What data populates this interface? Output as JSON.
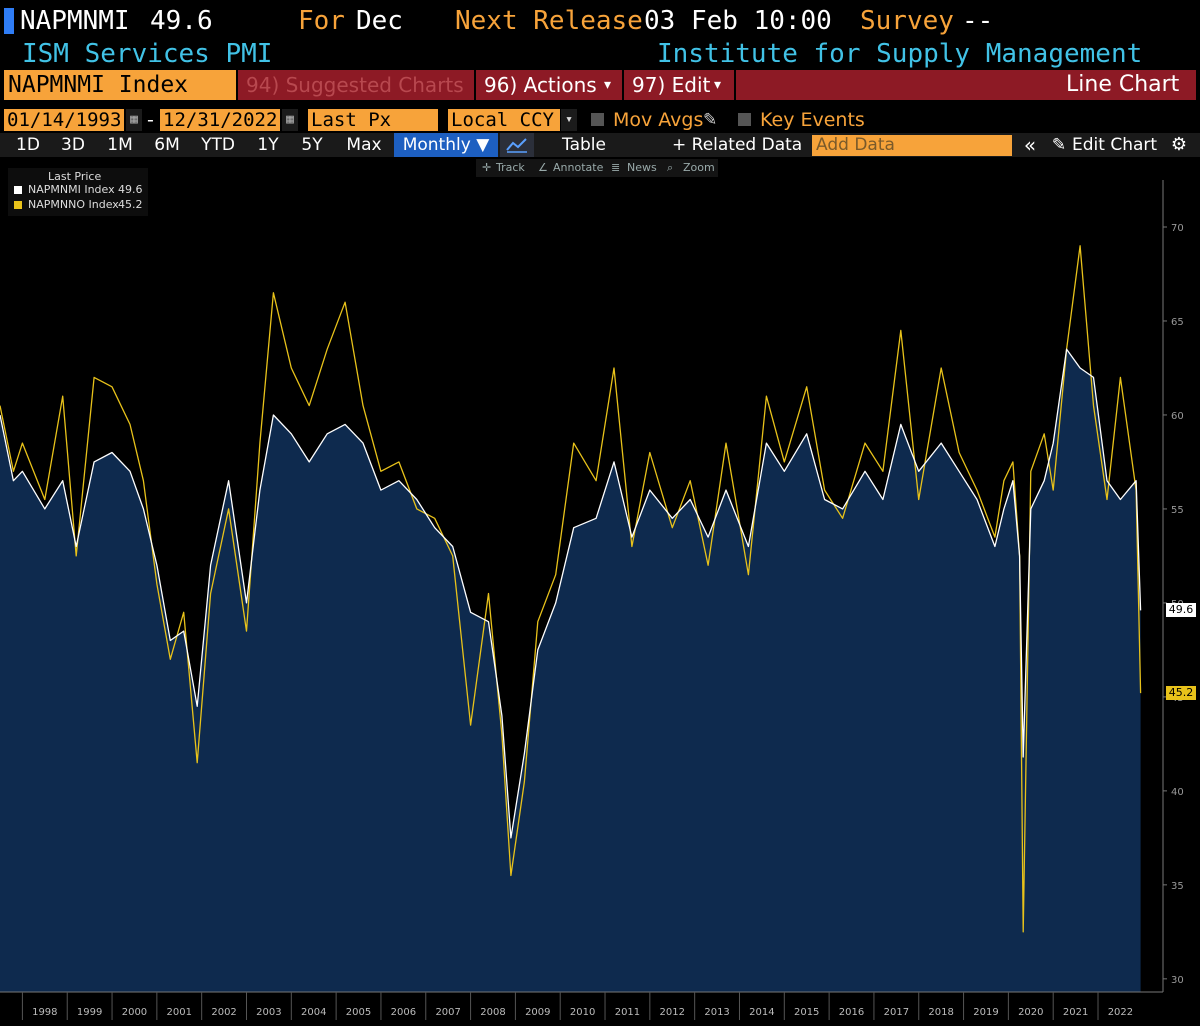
{
  "header": {
    "ticker": "NAPMNMI",
    "last": "49.6",
    "for_label": "For",
    "period": "Dec",
    "next_release_label": "Next Release",
    "next_release": "03 Feb 10:00",
    "survey_label": "Survey",
    "survey_value": "--",
    "name": "ISM Services PMI",
    "source": "Institute for Supply Management"
  },
  "function_bar": {
    "security": "NAPMNMI Index",
    "suggested": "94) Suggested Charts",
    "actions": "96) Actions",
    "edit": "97) Edit",
    "chart_type": "Line Chart",
    "dropdown_arrow": "▾"
  },
  "controls": {
    "start_date": "01/14/1993",
    "dash": "-",
    "end_date": "12/31/2022",
    "price_field": "Last Px",
    "currency": "Local CCY",
    "mov_avgs": "Mov Avgs",
    "key_events": "Key Events"
  },
  "toolbar": {
    "periods": [
      "1D",
      "3D",
      "1M",
      "6M",
      "YTD",
      "1Y",
      "5Y",
      "Max"
    ],
    "frequency": "Monthly ▼",
    "table": "Table",
    "related": "+ Related Data",
    "add_data_placeholder": "Add Data",
    "collapse": "«",
    "edit_chart": "Edit Chart",
    "sub": [
      "Track",
      "Annotate",
      "News",
      "Zoom"
    ]
  },
  "colors": {
    "napmnmi": "#ffffff",
    "napmnno": "#e8c21a",
    "area": "#0e2a4e",
    "accent": "#f7a33a"
  },
  "chart_data": {
    "type": "line",
    "legend_title": "Last Price",
    "legend_placement": "top-left",
    "series": [
      {
        "name": "NAPMNMI Index",
        "last": "49.6",
        "style": "area",
        "points": [
          [
            1997.5,
            60.0
          ],
          [
            1997.8,
            56.5
          ],
          [
            1998.0,
            57.0
          ],
          [
            1998.5,
            55.0
          ],
          [
            1998.9,
            56.5
          ],
          [
            1999.2,
            53.0
          ],
          [
            1999.6,
            57.5
          ],
          [
            2000.0,
            58.0
          ],
          [
            2000.4,
            57.0
          ],
          [
            2000.7,
            55.0
          ],
          [
            2001.0,
            52.0
          ],
          [
            2001.3,
            48.0
          ],
          [
            2001.6,
            48.5
          ],
          [
            2001.9,
            44.5
          ],
          [
            2002.2,
            52.0
          ],
          [
            2002.6,
            56.5
          ],
          [
            2003.0,
            50.0
          ],
          [
            2003.3,
            56.0
          ],
          [
            2003.6,
            60.0
          ],
          [
            2004.0,
            59.0
          ],
          [
            2004.4,
            57.5
          ],
          [
            2004.8,
            59.0
          ],
          [
            2005.2,
            59.5
          ],
          [
            2005.6,
            58.5
          ],
          [
            2006.0,
            56.0
          ],
          [
            2006.4,
            56.5
          ],
          [
            2006.8,
            55.5
          ],
          [
            2007.2,
            54.0
          ],
          [
            2007.6,
            53.0
          ],
          [
            2008.0,
            49.5
          ],
          [
            2008.4,
            49.0
          ],
          [
            2008.7,
            44.0
          ],
          [
            2008.9,
            37.5
          ],
          [
            2009.2,
            42.0
          ],
          [
            2009.5,
            47.5
          ],
          [
            2009.9,
            50.0
          ],
          [
            2010.3,
            54.0
          ],
          [
            2010.8,
            54.5
          ],
          [
            2011.2,
            57.5
          ],
          [
            2011.6,
            53.5
          ],
          [
            2012.0,
            56.0
          ],
          [
            2012.5,
            54.5
          ],
          [
            2012.9,
            55.5
          ],
          [
            2013.3,
            53.5
          ],
          [
            2013.7,
            56.0
          ],
          [
            2014.2,
            53.0
          ],
          [
            2014.6,
            58.5
          ],
          [
            2015.0,
            57.0
          ],
          [
            2015.5,
            59.0
          ],
          [
            2015.9,
            55.5
          ],
          [
            2016.3,
            55.0
          ],
          [
            2016.8,
            57.0
          ],
          [
            2017.2,
            55.5
          ],
          [
            2017.6,
            59.5
          ],
          [
            2018.0,
            57.0
          ],
          [
            2018.5,
            58.5
          ],
          [
            2018.9,
            57.0
          ],
          [
            2019.3,
            55.5
          ],
          [
            2019.7,
            53.0
          ],
          [
            2019.9,
            55.0
          ],
          [
            2020.1,
            56.5
          ],
          [
            2020.25,
            52.5
          ],
          [
            2020.33,
            41.8
          ],
          [
            2020.5,
            55.0
          ],
          [
            2020.8,
            56.5
          ],
          [
            2021.0,
            58.5
          ],
          [
            2021.3,
            63.5
          ],
          [
            2021.6,
            62.5
          ],
          [
            2021.9,
            62.0
          ],
          [
            2022.2,
            56.5
          ],
          [
            2022.5,
            55.5
          ],
          [
            2022.85,
            56.5
          ],
          [
            2022.95,
            49.6
          ]
        ]
      },
      {
        "name": "NAPMNNO Index",
        "last": "45.2",
        "style": "line",
        "points": [
          [
            1997.5,
            60.5
          ],
          [
            1997.8,
            57.0
          ],
          [
            1998.0,
            58.5
          ],
          [
            1998.5,
            55.5
          ],
          [
            1998.9,
            61.0
          ],
          [
            1999.2,
            52.5
          ],
          [
            1999.6,
            62.0
          ],
          [
            2000.0,
            61.5
          ],
          [
            2000.4,
            59.5
          ],
          [
            2000.7,
            56.5
          ],
          [
            2001.0,
            51.0
          ],
          [
            2001.3,
            47.0
          ],
          [
            2001.6,
            49.5
          ],
          [
            2001.9,
            41.5
          ],
          [
            2002.2,
            50.5
          ],
          [
            2002.6,
            55.0
          ],
          [
            2003.0,
            48.5
          ],
          [
            2003.3,
            58.5
          ],
          [
            2003.6,
            66.5
          ],
          [
            2004.0,
            62.5
          ],
          [
            2004.4,
            60.5
          ],
          [
            2004.8,
            63.5
          ],
          [
            2005.2,
            66.0
          ],
          [
            2005.6,
            60.5
          ],
          [
            2006.0,
            57.0
          ],
          [
            2006.4,
            57.5
          ],
          [
            2006.8,
            55.0
          ],
          [
            2007.2,
            54.5
          ],
          [
            2007.6,
            52.5
          ],
          [
            2008.0,
            43.5
          ],
          [
            2008.4,
            50.5
          ],
          [
            2008.7,
            43.0
          ],
          [
            2008.9,
            35.5
          ],
          [
            2009.2,
            40.5
          ],
          [
            2009.5,
            49.0
          ],
          [
            2009.9,
            51.5
          ],
          [
            2010.3,
            58.5
          ],
          [
            2010.8,
            56.5
          ],
          [
            2011.2,
            62.5
          ],
          [
            2011.6,
            53.0
          ],
          [
            2012.0,
            58.0
          ],
          [
            2012.5,
            54.0
          ],
          [
            2012.9,
            56.5
          ],
          [
            2013.3,
            52.0
          ],
          [
            2013.7,
            58.5
          ],
          [
            2014.2,
            51.5
          ],
          [
            2014.6,
            61.0
          ],
          [
            2015.0,
            57.5
          ],
          [
            2015.5,
            61.5
          ],
          [
            2015.9,
            56.0
          ],
          [
            2016.3,
            54.5
          ],
          [
            2016.8,
            58.5
          ],
          [
            2017.2,
            57.0
          ],
          [
            2017.6,
            64.5
          ],
          [
            2018.0,
            55.5
          ],
          [
            2018.5,
            62.5
          ],
          [
            2018.9,
            58.0
          ],
          [
            2019.3,
            56.0
          ],
          [
            2019.7,
            53.5
          ],
          [
            2019.9,
            56.5
          ],
          [
            2020.1,
            57.5
          ],
          [
            2020.25,
            52.5
          ],
          [
            2020.33,
            32.5
          ],
          [
            2020.5,
            57.0
          ],
          [
            2020.8,
            59.0
          ],
          [
            2021.0,
            56.0
          ],
          [
            2021.3,
            63.5
          ],
          [
            2021.6,
            69.0
          ],
          [
            2021.9,
            60.5
          ],
          [
            2022.2,
            55.5
          ],
          [
            2022.5,
            62.0
          ],
          [
            2022.85,
            56.0
          ],
          [
            2022.95,
            45.2
          ]
        ]
      }
    ],
    "x_ticks": [
      "1998",
      "1999",
      "2000",
      "2001",
      "2002",
      "2003",
      "2004",
      "2005",
      "2006",
      "2007",
      "2008",
      "2009",
      "2010",
      "2011",
      "2012",
      "2013",
      "2014",
      "2015",
      "2016",
      "2017",
      "2018",
      "2019",
      "2020",
      "2021",
      "2022"
    ],
    "y_ticks": [
      30,
      35,
      40,
      45,
      50,
      55,
      60,
      65,
      70
    ],
    "ylim": [
      29.3,
      72.5
    ],
    "xlim": [
      1997.5,
      2023.45
    ],
    "grid": false
  }
}
